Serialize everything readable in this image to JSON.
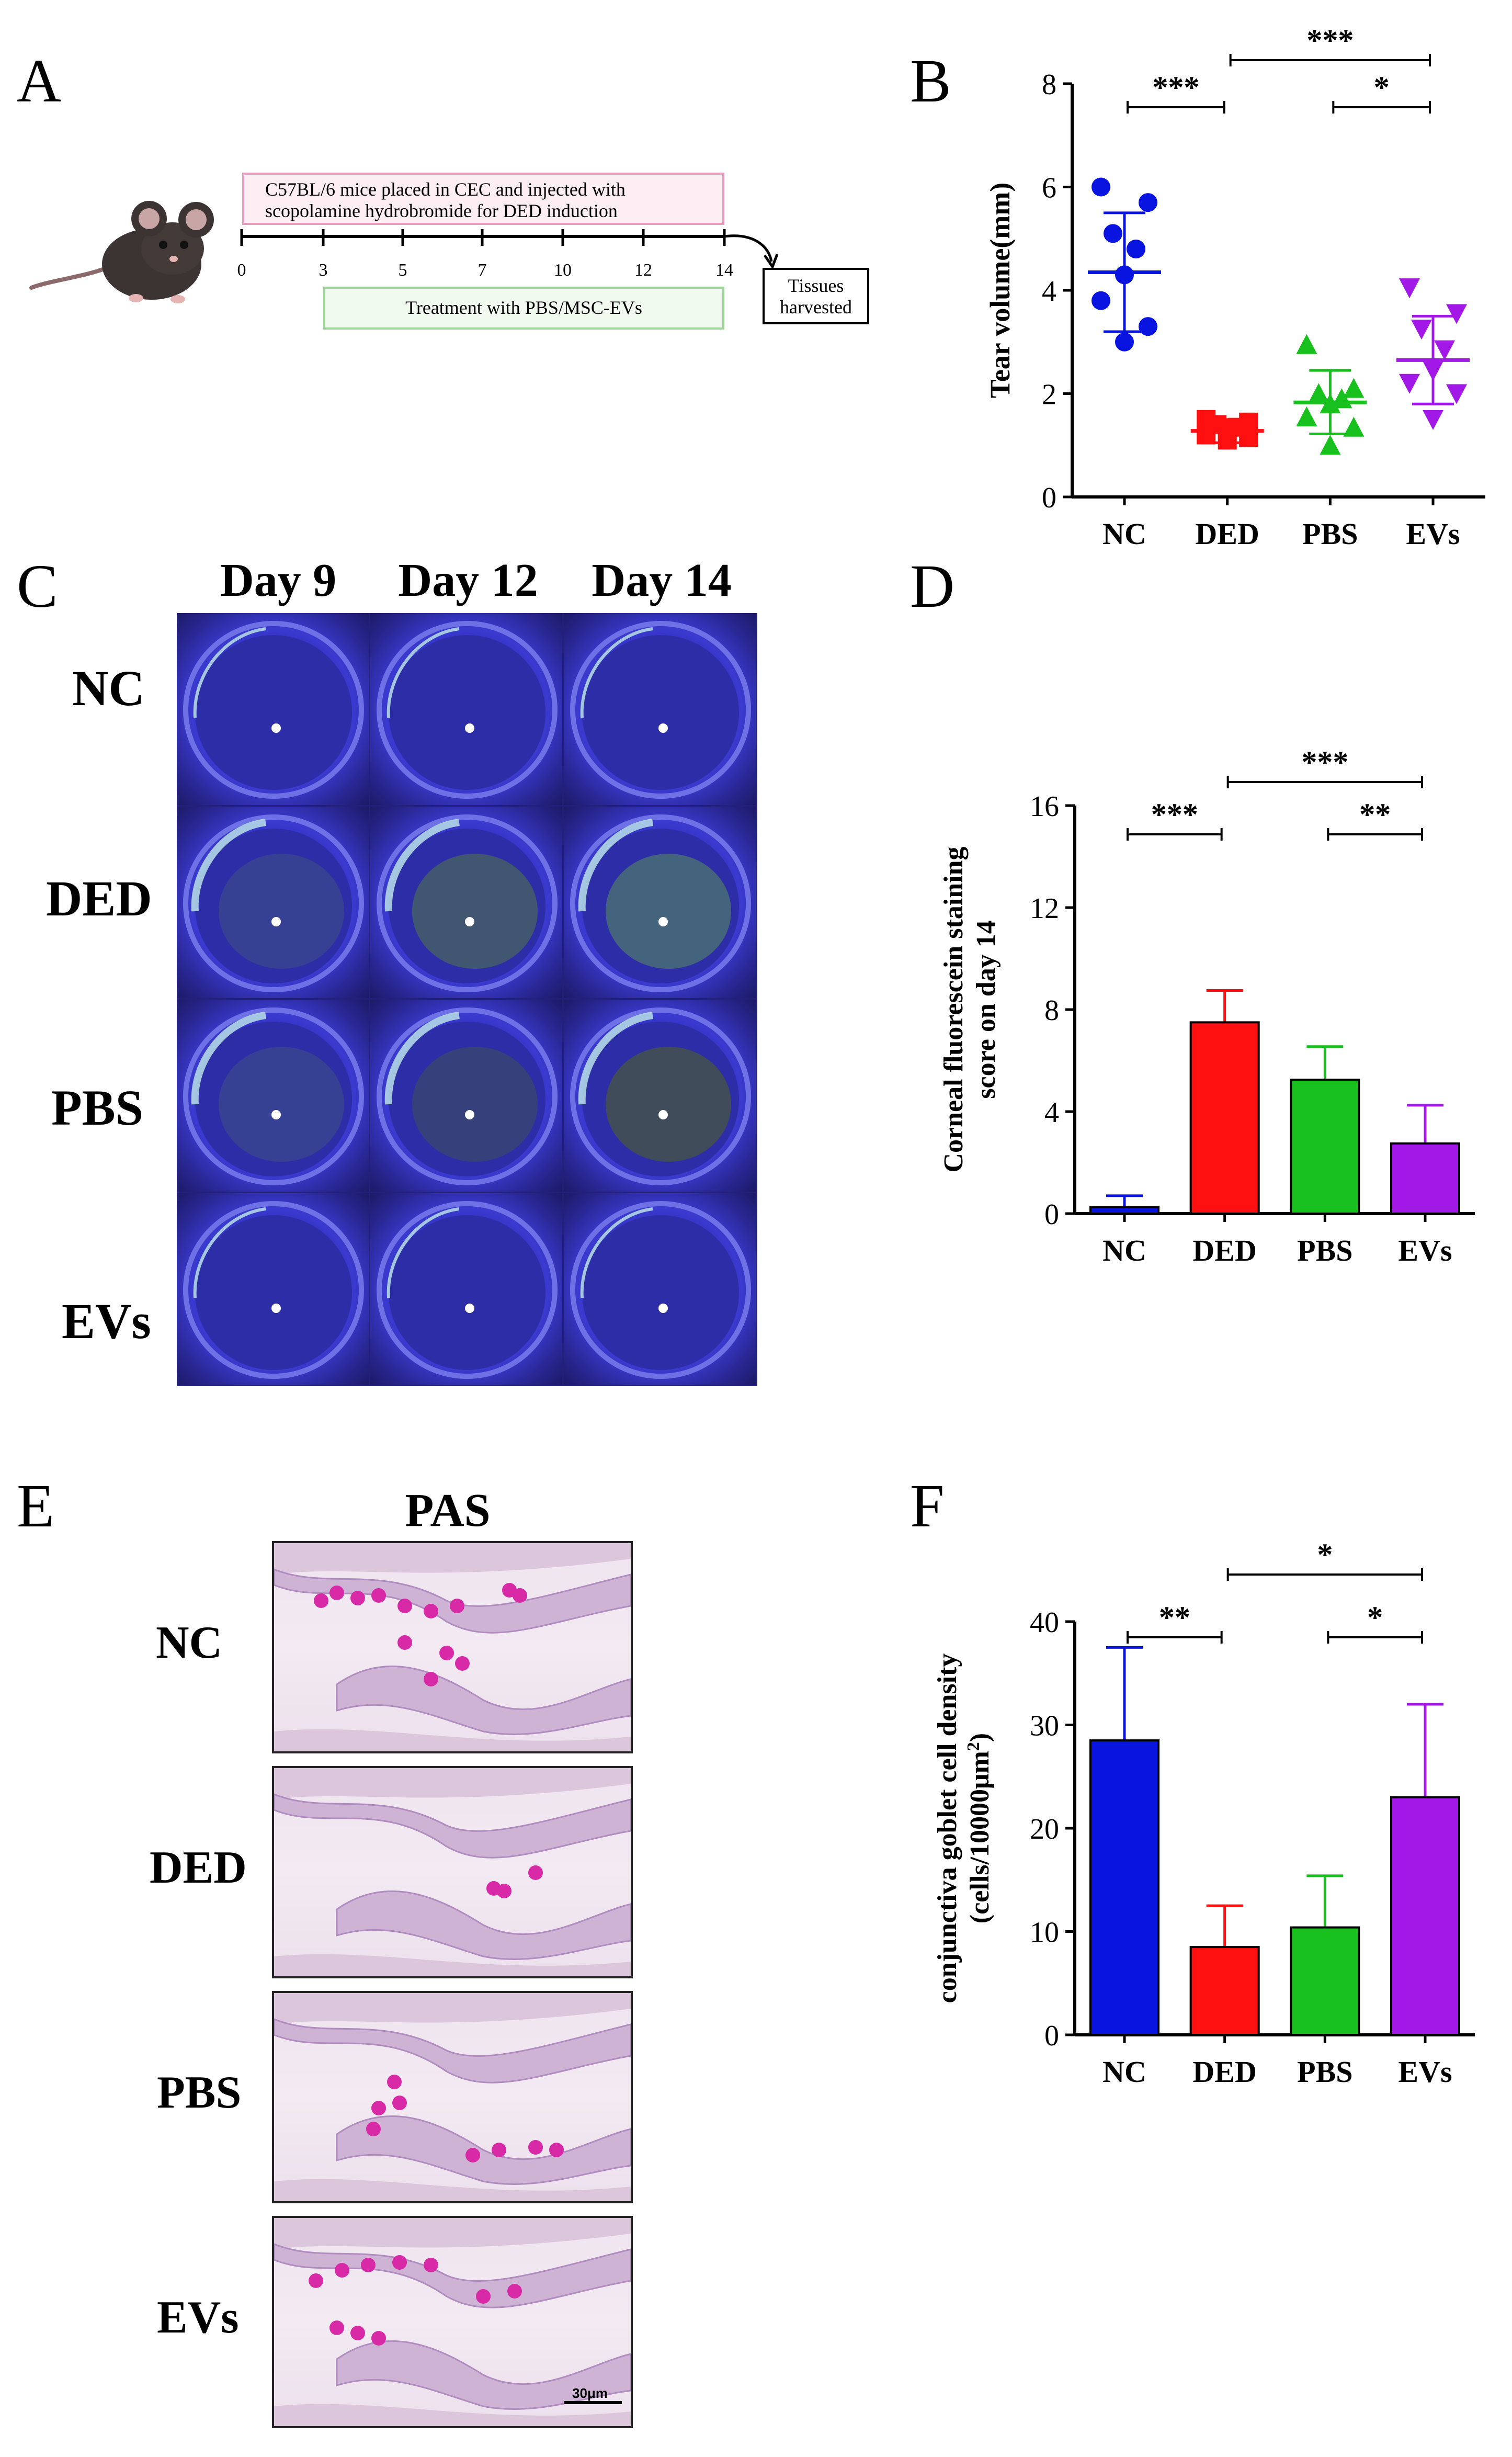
{
  "panels": {
    "A": "A",
    "B": "B",
    "C": "C",
    "D": "D",
    "E": "E",
    "F": "F"
  },
  "panel_a": {
    "induction_line1": "C57BL/6 mice placed in CEC and injected with",
    "induction_line2": "scopolamine hydrobromide for DED induction",
    "treatment_label": "Treatment with PBS/MSC-EVs",
    "harvest_line1": "Tissues",
    "harvest_line2": "harvested",
    "days": [
      "0",
      "3",
      "5",
      "7",
      "10",
      "12",
      "14"
    ],
    "colors": {
      "induction_border": "#e89cc0",
      "induction_fill": "#fdeef4",
      "treatment_border": "#9fd59a",
      "treatment_fill": "#f1faef"
    }
  },
  "panel_c": {
    "columns": [
      "Day 9",
      "Day 12",
      "Day 14"
    ],
    "rows": [
      "NC",
      "DED",
      "PBS",
      "EVs"
    ]
  },
  "panel_e": {
    "title": "PAS",
    "rows": [
      "NC",
      "DED",
      "PBS",
      "EVs"
    ],
    "scale_label": "30μm"
  },
  "chart_data": [
    {
      "panel": "B",
      "type": "scatter",
      "ylabel": "Tear volume(mm)",
      "categories": [
        "NC",
        "DED",
        "PBS",
        "EVs"
      ],
      "ylim": [
        0,
        8
      ],
      "yticks": [
        0,
        2,
        4,
        6,
        8
      ],
      "colors": [
        "#0a14e0",
        "#ff1010",
        "#17c01c",
        "#a218e6"
      ],
      "markers": [
        "circle",
        "square",
        "triangle-up",
        "triangle-down"
      ],
      "points": [
        [
          6.0,
          5.7,
          5.1,
          4.8,
          4.3,
          3.8,
          3.3,
          3.0
        ],
        [
          1.5,
          1.45,
          1.4,
          1.35,
          1.3,
          1.2,
          1.15,
          1.1
        ],
        [
          2.95,
          2.1,
          2.0,
          1.9,
          1.8,
          1.55,
          1.35,
          1.0
        ],
        [
          4.05,
          3.55,
          3.25,
          2.85,
          2.45,
          2.2,
          2.0,
          1.5
        ]
      ],
      "means": [
        4.35,
        1.28,
        1.83,
        2.65
      ],
      "sd_upper": [
        5.5,
        1.5,
        2.45,
        3.5
      ],
      "sd_lower": [
        3.2,
        1.05,
        1.22,
        1.8
      ],
      "significance": [
        {
          "from": "NC",
          "to": "DED",
          "label": "***"
        },
        {
          "from": "DED",
          "to": "EVs",
          "label": "***"
        },
        {
          "from": "PBS",
          "to": "EVs",
          "label": "*"
        }
      ]
    },
    {
      "panel": "D",
      "type": "bar",
      "ylabel_line1": "Corneal fluorescein staining",
      "ylabel_line2": "score on day 14",
      "categories": [
        "NC",
        "DED",
        "PBS",
        "EVs"
      ],
      "values": [
        0.25,
        7.5,
        5.25,
        2.75
      ],
      "errors": [
        0.45,
        1.25,
        1.3,
        1.5
      ],
      "ylim": [
        0,
        16
      ],
      "yticks": [
        0,
        4,
        8,
        12,
        16
      ],
      "colors": [
        "#0a14e0",
        "#ff1010",
        "#17c01c",
        "#a218e6"
      ],
      "significance": [
        {
          "from": "NC",
          "to": "DED",
          "label": "***"
        },
        {
          "from": "DED",
          "to": "EVs",
          "label": "***"
        },
        {
          "from": "PBS",
          "to": "EVs",
          "label": "**"
        }
      ]
    },
    {
      "panel": "F",
      "type": "bar",
      "ylabel_line1": "conjunctiva goblet cell density",
      "ylabel_line2": "(cells/10000μm",
      "ylabel_sup": "2",
      "ylabel_tail": ")",
      "categories": [
        "NC",
        "DED",
        "PBS",
        "EVs"
      ],
      "values": [
        28.5,
        8.5,
        10.4,
        23.0
      ],
      "errors": [
        9.0,
        4.0,
        5.0,
        9.0
      ],
      "ylim": [
        0,
        40
      ],
      "yticks": [
        0,
        10,
        20,
        30,
        40
      ],
      "colors": [
        "#0a14e0",
        "#ff1010",
        "#17c01c",
        "#a218e6"
      ],
      "significance": [
        {
          "from": "NC",
          "to": "DED",
          "label": "**"
        },
        {
          "from": "DED",
          "to": "EVs",
          "label": "*"
        },
        {
          "from": "PBS",
          "to": "EVs",
          "label": "*"
        }
      ]
    }
  ]
}
